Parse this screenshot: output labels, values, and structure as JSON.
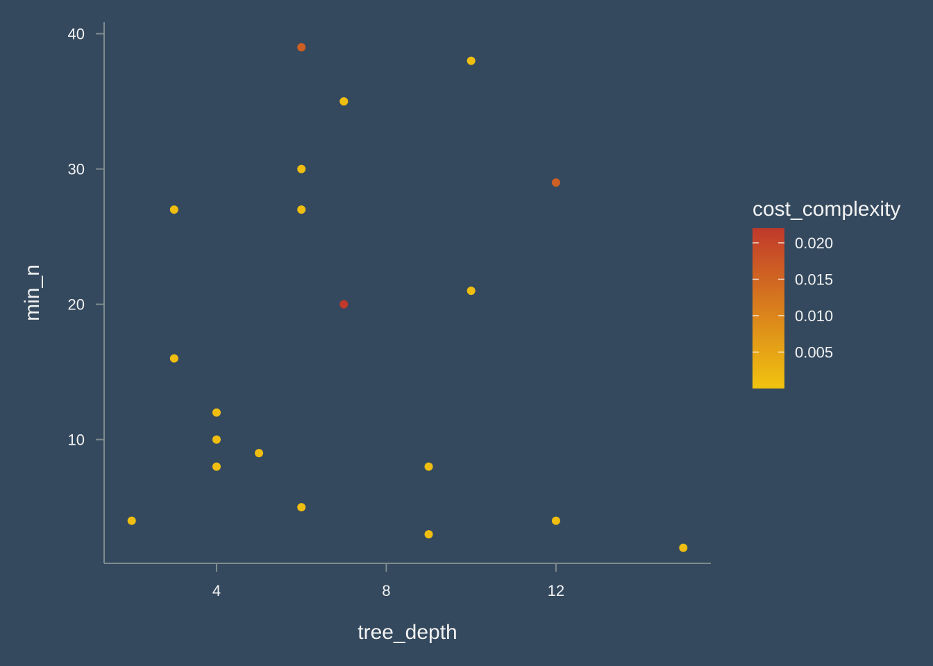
{
  "chart_data": {
    "type": "scatter",
    "title": "",
    "xlabel": "tree_depth",
    "ylabel": "min_n",
    "xlim": [
      1.35,
      15.65
    ],
    "ylim": [
      0.85,
      40.85
    ],
    "x_ticks": [
      4,
      8,
      12
    ],
    "y_ticks": [
      10,
      20,
      30,
      40
    ],
    "grid": false,
    "color": {
      "variable": "cost_complexity",
      "range": [
        0.0,
        0.022
      ],
      "low": "#f1c40f",
      "high": "#c0392b",
      "breaks": [
        0.005,
        0.01,
        0.015,
        0.02
      ],
      "break_labels": [
        "0.005",
        "0.010",
        "0.015",
        "0.020"
      ]
    },
    "legend_position": "right",
    "points": [
      {
        "x": 6,
        "y": 39,
        "c": 0.016
      },
      {
        "x": 10,
        "y": 38,
        "c": 0.001
      },
      {
        "x": 7,
        "y": 35,
        "c": 0.001
      },
      {
        "x": 6,
        "y": 30,
        "c": 0.001
      },
      {
        "x": 12,
        "y": 29,
        "c": 0.016
      },
      {
        "x": 3,
        "y": 27,
        "c": 0.001
      },
      {
        "x": 6,
        "y": 27,
        "c": 0.001
      },
      {
        "x": 10,
        "y": 21,
        "c": 0.001
      },
      {
        "x": 7,
        "y": 20,
        "c": 0.022
      },
      {
        "x": 3,
        "y": 16,
        "c": 0.001
      },
      {
        "x": 4,
        "y": 12,
        "c": 0.001
      },
      {
        "x": 4,
        "y": 10,
        "c": 0.001
      },
      {
        "x": 5,
        "y": 9,
        "c": 0.001
      },
      {
        "x": 4,
        "y": 8,
        "c": 0.001
      },
      {
        "x": 9,
        "y": 8,
        "c": 0.001
      },
      {
        "x": 6,
        "y": 5,
        "c": 0.001
      },
      {
        "x": 2,
        "y": 4,
        "c": 0.001
      },
      {
        "x": 12,
        "y": 4,
        "c": 0.001
      },
      {
        "x": 9,
        "y": 3,
        "c": 0.001
      },
      {
        "x": 15,
        "y": 2,
        "c": 0.001
      }
    ]
  },
  "style": {
    "background": "#34495e",
    "axis_line": "#7f8c8d",
    "text": "#f2f2f2"
  }
}
